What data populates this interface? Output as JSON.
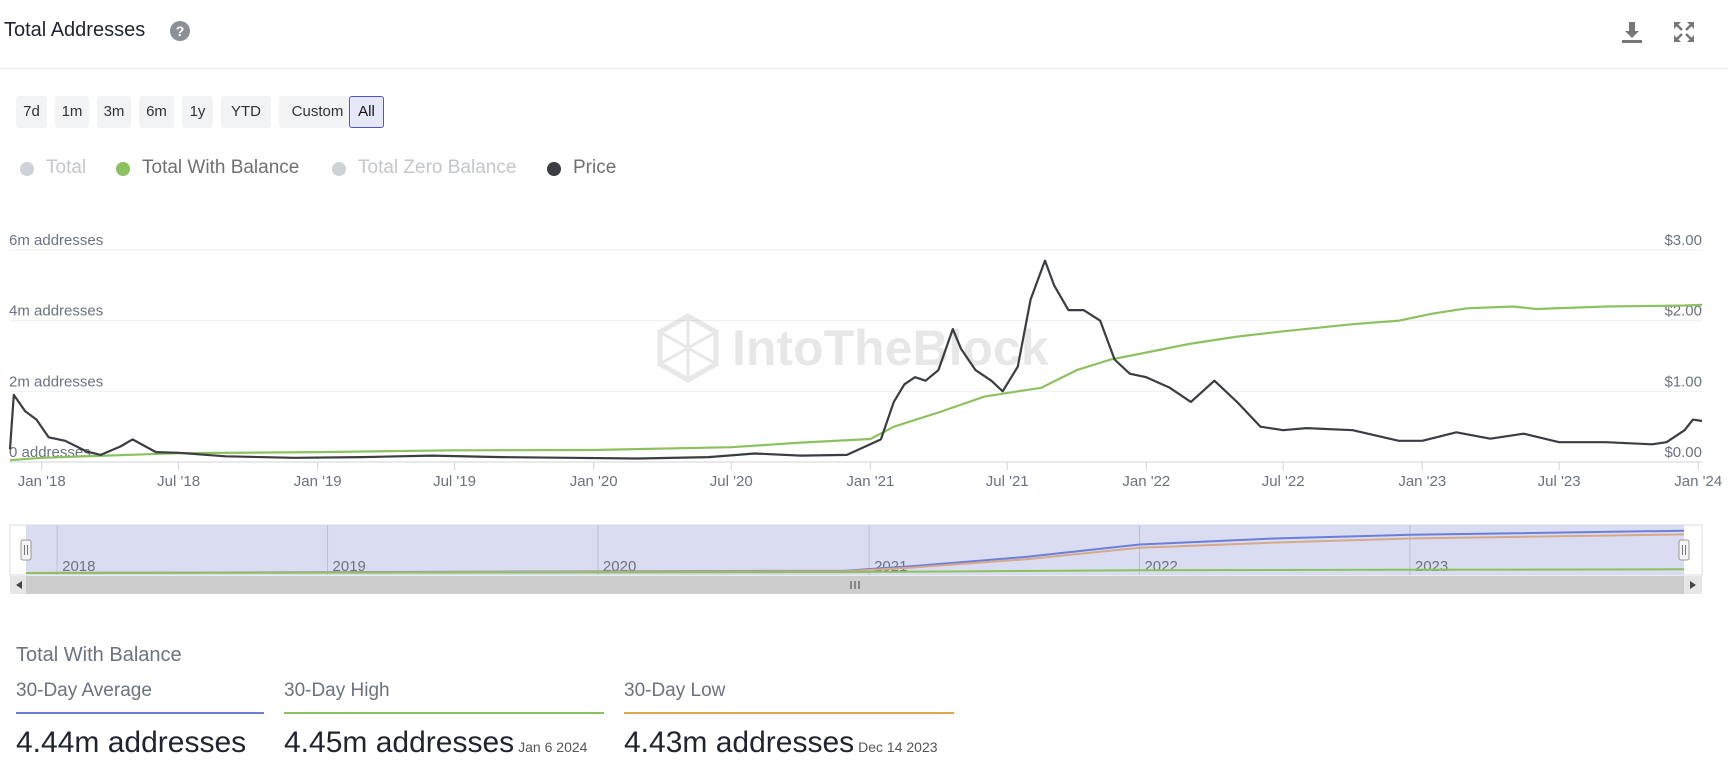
{
  "header": {
    "title": "Total Addresses",
    "help_icon": "question-circle-icon",
    "download_icon": "download-icon",
    "fullscreen_icon": "expand-icon"
  },
  "ranges": [
    {
      "label": "7d",
      "active": false
    },
    {
      "label": "1m",
      "active": false
    },
    {
      "label": "3m",
      "active": false
    },
    {
      "label": "6m",
      "active": false
    },
    {
      "label": "1y",
      "active": false
    },
    {
      "label": "YTD",
      "active": false
    },
    {
      "label": "Custom",
      "active": false
    },
    {
      "label": "All",
      "active": true
    }
  ],
  "legend": [
    {
      "label": "Total",
      "color": "#cfd2d6",
      "enabled": false
    },
    {
      "label": "Total With Balance",
      "color": "#8cc15f",
      "enabled": true
    },
    {
      "label": "Total Zero Balance",
      "color": "#cfd2d6",
      "enabled": false
    },
    {
      "label": "Price",
      "color": "#3a3d42",
      "enabled": true
    }
  ],
  "chart_data": {
    "type": "line",
    "watermark": "IntoTheBlock",
    "x_ticks": [
      "Jan '18",
      "Jul '18",
      "Jan '19",
      "Jul '19",
      "Jan '20",
      "Jul '20",
      "Jan '21",
      "Jul '21",
      "Jan '22",
      "Jul '22",
      "Jan '23",
      "Jul '23",
      "Jan '24"
    ],
    "y_left": {
      "ticks": [
        "0 addresses",
        "2m addresses",
        "4m addresses",
        "6m addresses"
      ],
      "range": [
        0,
        6000000
      ]
    },
    "y_right": {
      "ticks": [
        "$0.00",
        "$1.00",
        "$2.00",
        "$3.00"
      ],
      "range": [
        0,
        3
      ]
    },
    "x_range": [
      "2017-11-20",
      "2024-01-06"
    ],
    "series": [
      {
        "name": "Total With Balance",
        "axis": "left",
        "color": "#8cc15f",
        "points": [
          [
            "2017-11-20",
            50000
          ],
          [
            "2018-01-01",
            120000
          ],
          [
            "2018-07-01",
            250000
          ],
          [
            "2019-01-01",
            280000
          ],
          [
            "2019-07-01",
            330000
          ],
          [
            "2020-01-01",
            340000
          ],
          [
            "2020-07-01",
            420000
          ],
          [
            "2020-10-01",
            550000
          ],
          [
            "2021-01-01",
            650000
          ],
          [
            "2021-02-01",
            1000000
          ],
          [
            "2021-04-01",
            1400000
          ],
          [
            "2021-06-01",
            1850000
          ],
          [
            "2021-07-15",
            2000000
          ],
          [
            "2021-08-15",
            2100000
          ],
          [
            "2021-10-01",
            2600000
          ],
          [
            "2021-11-15",
            2900000
          ],
          [
            "2022-01-01",
            3100000
          ],
          [
            "2022-03-01",
            3350000
          ],
          [
            "2022-05-01",
            3550000
          ],
          [
            "2022-07-01",
            3700000
          ],
          [
            "2022-10-01",
            3900000
          ],
          [
            "2022-12-01",
            4000000
          ],
          [
            "2023-01-15",
            4200000
          ],
          [
            "2023-03-01",
            4350000
          ],
          [
            "2023-05-01",
            4400000
          ],
          [
            "2023-06-01",
            4330000
          ],
          [
            "2023-09-01",
            4400000
          ],
          [
            "2023-12-14",
            4430000
          ],
          [
            "2024-01-06",
            4450000
          ]
        ]
      },
      {
        "name": "Price",
        "axis": "right",
        "color": "#3a3d42",
        "points": [
          [
            "2017-11-20",
            0.18
          ],
          [
            "2017-11-25",
            0.95
          ],
          [
            "2017-12-10",
            0.72
          ],
          [
            "2017-12-25",
            0.6
          ],
          [
            "2018-01-10",
            0.35
          ],
          [
            "2018-02-01",
            0.3
          ],
          [
            "2018-03-01",
            0.15
          ],
          [
            "2018-03-20",
            0.1
          ],
          [
            "2018-04-15",
            0.22
          ],
          [
            "2018-05-01",
            0.32
          ],
          [
            "2018-06-01",
            0.14
          ],
          [
            "2018-07-01",
            0.13
          ],
          [
            "2018-09-01",
            0.08
          ],
          [
            "2018-12-01",
            0.06
          ],
          [
            "2019-03-01",
            0.07
          ],
          [
            "2019-06-01",
            0.09
          ],
          [
            "2019-09-01",
            0.07
          ],
          [
            "2019-12-01",
            0.06
          ],
          [
            "2020-03-01",
            0.05
          ],
          [
            "2020-06-01",
            0.07
          ],
          [
            "2020-08-01",
            0.12
          ],
          [
            "2020-10-01",
            0.09
          ],
          [
            "2020-12-01",
            0.1
          ],
          [
            "2021-01-15",
            0.32
          ],
          [
            "2021-02-01",
            0.85
          ],
          [
            "2021-02-15",
            1.1
          ],
          [
            "2021-03-01",
            1.2
          ],
          [
            "2021-03-15",
            1.15
          ],
          [
            "2021-04-01",
            1.3
          ],
          [
            "2021-04-20",
            1.88
          ],
          [
            "2021-05-01",
            1.6
          ],
          [
            "2021-05-20",
            1.3
          ],
          [
            "2021-06-10",
            1.15
          ],
          [
            "2021-06-25",
            1.0
          ],
          [
            "2021-07-15",
            1.35
          ],
          [
            "2021-08-01",
            2.3
          ],
          [
            "2021-08-20",
            2.85
          ],
          [
            "2021-09-01",
            2.5
          ],
          [
            "2021-09-20",
            2.15
          ],
          [
            "2021-10-10",
            2.15
          ],
          [
            "2021-11-01",
            2.0
          ],
          [
            "2021-11-20",
            1.45
          ],
          [
            "2021-12-10",
            1.25
          ],
          [
            "2022-01-01",
            1.2
          ],
          [
            "2022-02-01",
            1.05
          ],
          [
            "2022-03-01",
            0.85
          ],
          [
            "2022-04-01",
            1.15
          ],
          [
            "2022-05-01",
            0.85
          ],
          [
            "2022-06-01",
            0.5
          ],
          [
            "2022-07-01",
            0.45
          ],
          [
            "2022-08-01",
            0.48
          ],
          [
            "2022-10-01",
            0.45
          ],
          [
            "2022-12-01",
            0.3
          ],
          [
            "2023-01-01",
            0.3
          ],
          [
            "2023-02-15",
            0.42
          ],
          [
            "2023-04-01",
            0.33
          ],
          [
            "2023-05-15",
            0.4
          ],
          [
            "2023-07-01",
            0.28
          ],
          [
            "2023-09-01",
            0.28
          ],
          [
            "2023-11-01",
            0.25
          ],
          [
            "2023-11-20",
            0.28
          ],
          [
            "2023-12-14",
            0.45
          ],
          [
            "2023-12-25",
            0.6
          ],
          [
            "2024-01-06",
            0.58
          ]
        ]
      }
    ],
    "navigator": {
      "year_labels": [
        "2018",
        "2019",
        "2020",
        "2021",
        "2022",
        "2023"
      ],
      "series": [
        {
          "color": "#6c7fd8",
          "points": [
            [
              "2017-11-20",
              0.0
            ],
            [
              "2020-12-01",
              0.05
            ],
            [
              "2021-03-01",
              0.15
            ],
            [
              "2021-08-01",
              0.35
            ],
            [
              "2022-01-01",
              0.62
            ],
            [
              "2022-07-01",
              0.75
            ],
            [
              "2023-01-01",
              0.83
            ],
            [
              "2024-01-06",
              0.92
            ]
          ]
        },
        {
          "color": "#d6a98a",
          "points": [
            [
              "2017-11-20",
              0.0
            ],
            [
              "2020-12-01",
              0.04
            ],
            [
              "2021-03-01",
              0.12
            ],
            [
              "2021-08-01",
              0.3
            ],
            [
              "2022-01-01",
              0.55
            ],
            [
              "2022-07-01",
              0.66
            ],
            [
              "2023-01-01",
              0.75
            ],
            [
              "2024-01-06",
              0.84
            ]
          ]
        },
        {
          "color": "#8cc15f",
          "points": [
            [
              "2017-11-20",
              0.0
            ],
            [
              "2020-12-01",
              0.02
            ],
            [
              "2021-06-01",
              0.04
            ],
            [
              "2022-01-01",
              0.06
            ],
            [
              "2024-01-06",
              0.08
            ]
          ]
        }
      ]
    }
  },
  "stats": {
    "title": "Total With Balance",
    "items": [
      {
        "label": "30-Day Average",
        "value": "4.44m addresses",
        "date": "",
        "color": "#6c7fd8"
      },
      {
        "label": "30-Day High",
        "value": "4.45m addresses",
        "date": "Jan 6 2024",
        "color": "#8cc15f"
      },
      {
        "label": "30-Day Low",
        "value": "4.43m addresses",
        "date": "Dec 14 2023",
        "color": "#e0a84a"
      }
    ]
  }
}
